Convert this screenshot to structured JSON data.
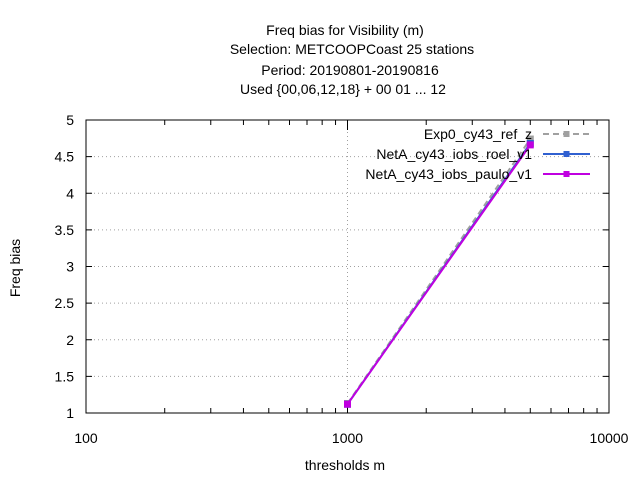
{
  "chart_data": {
    "type": "line",
    "title_lines": [
      "Freq bias  for Visibility (m)",
      "Selection: METCOOPCoast     25 stations",
      "Period: 20190801-20190816",
      "Used {00,06,12,18} + 00 01 ... 12"
    ],
    "xlabel": "thresholds m",
    "ylabel": "Freq bias",
    "x_scale": "log",
    "xlim": [
      100,
      10000
    ],
    "ylim": [
      1,
      5
    ],
    "x_ticks": [
      100,
      1000,
      10000
    ],
    "x_tick_labels": [
      "100",
      "1000",
      "10000"
    ],
    "y_ticks": [
      1,
      1.5,
      2,
      2.5,
      3,
      3.5,
      4,
      4.5,
      5
    ],
    "y_tick_labels": [
      "1",
      "1.5",
      "2",
      "2.5",
      "3",
      "3.5",
      "4",
      "4.5",
      "5"
    ],
    "grid": true,
    "legend_position": "top-right",
    "series": [
      {
        "name": "Exp0_cy43_ref_z",
        "color": "#a0a0a0",
        "dash": true,
        "marker": "square",
        "x": [
          1000,
          5000
        ],
        "y": [
          1.13,
          4.74
        ]
      },
      {
        "name": "NetA_cy43_iobs_roel_v1",
        "color": "#3060d0",
        "dash": false,
        "marker": "square",
        "x": [
          1000,
          5000
        ],
        "y": [
          1.12,
          4.68
        ]
      },
      {
        "name": "NetA_cy43_iobs_paulo_v1",
        "color": "#c000e0",
        "dash": false,
        "marker": "square",
        "x": [
          1000,
          5000
        ],
        "y": [
          1.12,
          4.66
        ]
      }
    ]
  }
}
